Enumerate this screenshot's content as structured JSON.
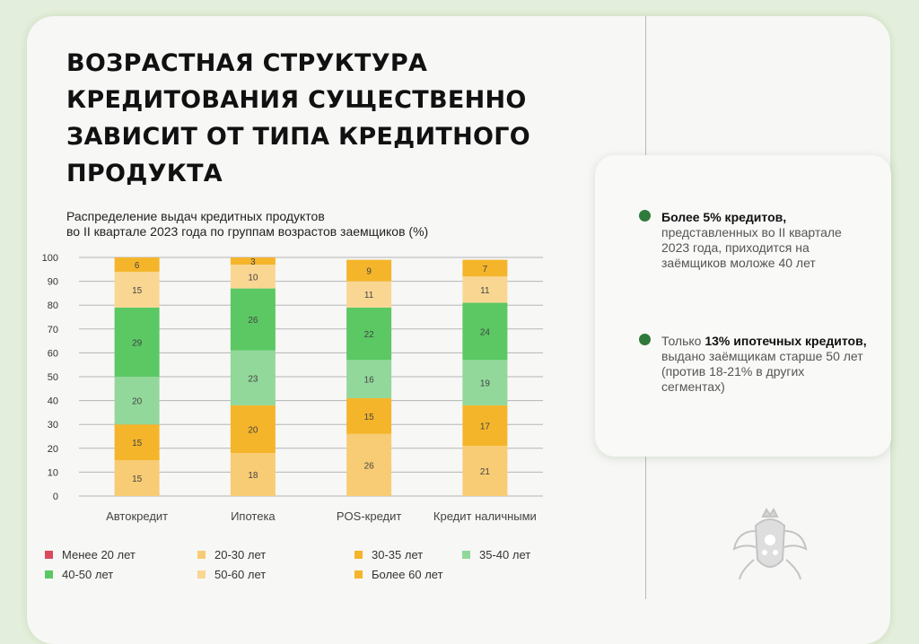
{
  "title": "ВОЗРАСТНАЯ СТРУКТУРА КРЕДИТОВАНИЯ СУЩЕСТВЕННО ЗАВИСИТ ОТ ТИПА КРЕДИТНОГО ПРОДУКТА",
  "chart_data": {
    "type": "bar",
    "stacked": true,
    "title_line1": "Распределение выдач кредитных продуктов",
    "title_line2": "во II квартале 2023 года по группам возрастов заемщиков (%)",
    "categories": [
      "Автокредит",
      "Ипотека",
      "POS-кредит",
      "Кредит наличными"
    ],
    "ylim": [
      0,
      100
    ],
    "yticks": [
      "0",
      "10",
      "20",
      "30",
      "40",
      "50",
      "60",
      "70",
      "80",
      "90",
      "100"
    ],
    "grid": true,
    "legend_position": "bottom",
    "series": [
      {
        "name": "Менее 20 лет",
        "color": "#d94a5c",
        "values": [
          0,
          0,
          0,
          0
        ]
      },
      {
        "name": "20-30 лет",
        "color": "#f8cc74",
        "values": [
          15,
          18,
          26,
          21
        ]
      },
      {
        "name": "30-35 лет",
        "color": "#f5b52a",
        "values": [
          15,
          20,
          15,
          17
        ]
      },
      {
        "name": "35-40 лет",
        "color": "#92d89a",
        "values": [
          20,
          23,
          16,
          19
        ]
      },
      {
        "name": "40-50 лет",
        "color": "#5bc864",
        "values": [
          29,
          26,
          22,
          24
        ]
      },
      {
        "name": "50-60 лет",
        "color": "#f9d793",
        "values": [
          15,
          10,
          11,
          11
        ]
      },
      {
        "name": "Более 60 лет",
        "color": "#f5b52a",
        "values": [
          6,
          3,
          9,
          7
        ]
      }
    ]
  },
  "side": {
    "note1_bold": "Более 5% кредитов,",
    "note1_text": "представленных во II квартале 2023 года, приходится на заёмщиков моложе 40 лет",
    "note2_pre": "Только ",
    "note2_bold": "13% ипотечных кредитов,",
    "note2_text": " выдано заёмщикам старше 50 лет (против 18-21% в других сегментах)"
  },
  "colors": {
    "accent": "#2f7a3b",
    "background": "#e4eedc"
  },
  "icons": {
    "emblem": "coat-of-arms-icon",
    "bullet": "bullet-dot-icon"
  }
}
